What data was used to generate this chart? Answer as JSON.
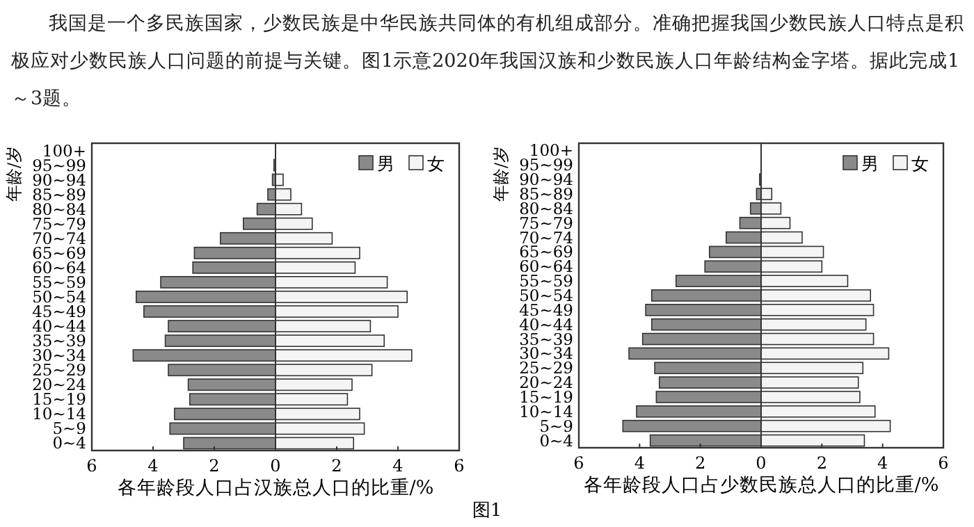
{
  "chart_data": [
    {
      "type": "bar",
      "orientation": "horizontal",
      "stacked": true,
      "legend": "top right",
      "xlabel": "各年龄段人口占汉族总人口的比重/%",
      "ylabel": "年龄/岁",
      "annotations": [
        "我国是一个多民族国家，少数民族是中华民族共同体的有机组成部分。准确把握我国少数民族人口特点是积极应对少数民族人口问题的前提与关键。图1示意2020年我国汉族和少数民族人口年龄结构金字塔。据此完成1～3题。",
        "图1"
      ],
      "categories": [
        "100+",
        "95~99",
        "90~94",
        "85~89",
        "80~84",
        "75~79",
        "70~74",
        "65~69",
        "60~64",
        "55~59",
        "50~54",
        "45~49",
        "40~44",
        "35~39",
        "30~34",
        "25~29",
        "20~24",
        "15~19",
        "10~14",
        "5~9",
        "0~4"
      ],
      "xlim": [
        -6,
        6
      ],
      "xticks": [
        {
          "value": -6,
          "label": "6"
        },
        {
          "value": -4,
          "label": "4"
        },
        {
          "value": -2,
          "label": "2"
        },
        0,
        2,
        4,
        6
      ],
      "series": [
        {
          "name": "男",
          "color": "#8a8a8a",
          "values": [
            0,
            -0.05,
            -0.1,
            -0.25,
            -0.6,
            -1.05,
            -1.8,
            -2.65,
            -2.7,
            -3.75,
            -4.55,
            -4.3,
            -3.5,
            -3.6,
            -4.65,
            -3.5,
            -2.85,
            -2.8,
            -3.3,
            -3.45,
            -3.0
          ]
        },
        {
          "name": "女",
          "color": "#f4f4f4",
          "values": [
            0,
            null,
            0.25,
            0.5,
            0.85,
            1.2,
            1.85,
            2.75,
            2.6,
            3.65,
            4.3,
            4.0,
            3.1,
            3.55,
            4.45,
            3.15,
            2.5,
            2.35,
            2.75,
            2.9,
            2.55
          ]
        }
      ]
    },
    {
      "type": "bar",
      "orientation": "horizontal",
      "stacked": true,
      "legend": "top right",
      "xlabel": "各年龄段人口占少数民族总人口的比重/%",
      "ylabel": "年龄/岁",
      "categories": [
        "100+",
        "95~99",
        "90~94",
        "85~89",
        "80~84",
        "75~79",
        "70~74",
        "65~69",
        "60~64",
        "55~59",
        "50~54",
        "45~49",
        "40~44",
        "35~39",
        "30~34",
        "25~29",
        "20~24",
        "15~19",
        "10~14",
        "5~9",
        "0~4"
      ],
      "xlim": [
        -6,
        6
      ],
      "xticks": [
        {
          "value": -6,
          "label": "6"
        },
        {
          "value": -4,
          "label": "4"
        },
        {
          "value": -2,
          "label": "2"
        },
        0,
        2,
        4,
        6
      ],
      "series": [
        {
          "name": "男",
          "color": "#8a8a8a",
          "values": [
            0,
            null,
            -0.05,
            -0.15,
            -0.35,
            -0.7,
            -1.15,
            -1.7,
            -1.85,
            -2.8,
            -3.6,
            -3.8,
            -3.6,
            -3.9,
            -4.35,
            -3.5,
            -3.35,
            -3.45,
            -4.1,
            -4.55,
            -3.65
          ]
        },
        {
          "name": "女",
          "color": "#f4f4f4",
          "values": [
            0,
            null,
            null,
            0.35,
            0.65,
            0.95,
            1.35,
            2.05,
            2.0,
            2.85,
            3.6,
            3.7,
            3.45,
            3.7,
            4.2,
            3.35,
            3.2,
            3.25,
            3.75,
            4.25,
            3.4
          ]
        }
      ]
    }
  ]
}
